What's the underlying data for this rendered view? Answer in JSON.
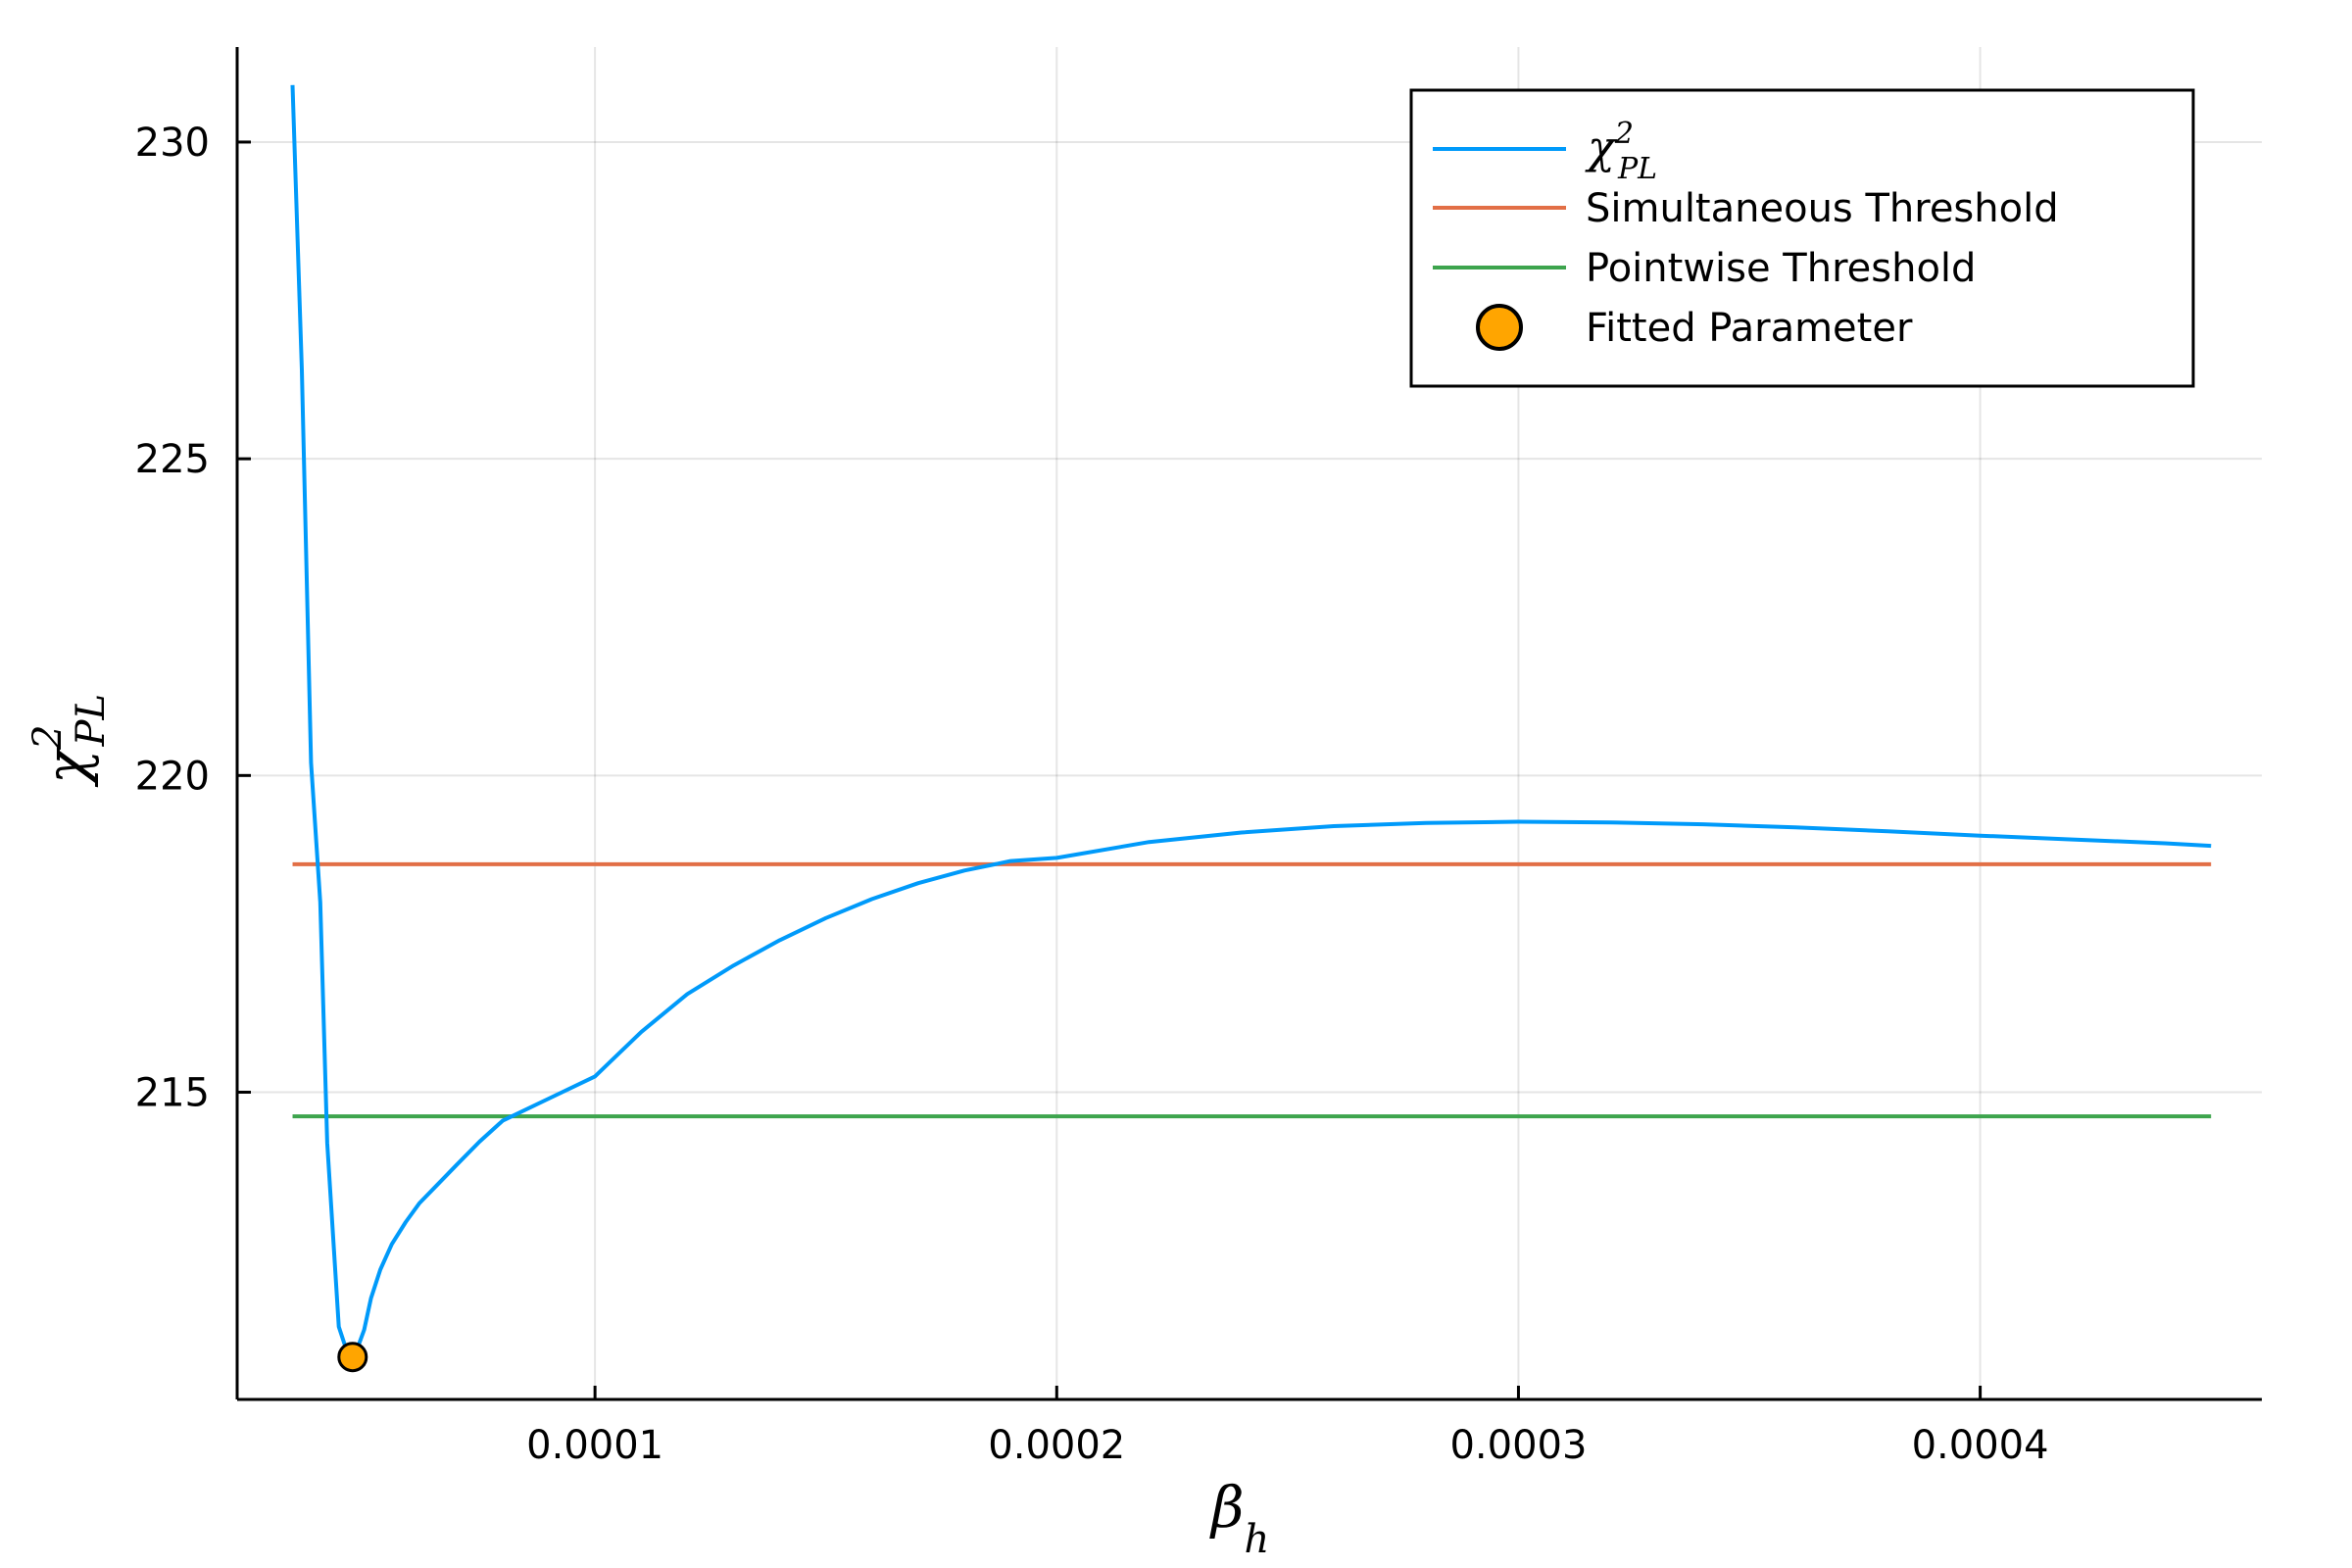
{
  "chart_data": {
    "type": "line",
    "xlabel": {
      "base": "β",
      "sub": "h"
    },
    "ylabel": {
      "base": "χ",
      "sup": "2",
      "sub": "PL"
    },
    "xlim": [
      2.25e-05,
      0.000461
    ],
    "ylim": [
      210.15,
      231.5
    ],
    "xticks": [
      {
        "value": 0.0001,
        "label": "0.0001"
      },
      {
        "value": 0.0002,
        "label": "0.0002"
      },
      {
        "value": 0.0003,
        "label": "0.0003"
      },
      {
        "value": 0.0004,
        "label": "0.0004"
      }
    ],
    "yticks": [
      {
        "value": 215,
        "label": "215"
      },
      {
        "value": 220,
        "label": "220"
      },
      {
        "value": 225,
        "label": "225"
      },
      {
        "value": 230,
        "label": "230"
      }
    ],
    "grid": true,
    "legend_position": "top-right",
    "series": [
      {
        "name": "χ²_PL",
        "legend": {
          "base": "χ",
          "sup": "2",
          "sub": "PL"
        },
        "kind": "line",
        "color": "#009AFA",
        "x": [
          3.45e-05,
          3.65e-05,
          3.85e-05,
          4.05e-05,
          4.2e-05,
          4.45e-05,
          4.7e-05,
          4.85e-05,
          5e-05,
          5.15e-05,
          5.35e-05,
          5.6e-05,
          5.9e-05,
          6.2e-05,
          6.6e-05,
          7e-05,
          7.5e-05,
          8e-05,
          9e-05,
          0.0001,
          0.00011,
          0.00012,
          0.00013,
          0.00014,
          0.00015,
          0.00016,
          0.00017,
          0.00018,
          0.00019,
          0.0002,
          0.00022,
          0.00024,
          0.00026,
          0.00028,
          0.0003,
          0.00032,
          0.00034,
          0.00036,
          0.00038,
          0.0004,
          0.00042,
          0.00044,
          0.00045
        ],
        "y": [
          230.9,
          226.4,
          220.2,
          218.0,
          214.2,
          211.3,
          210.75,
          210.95,
          211.25,
          211.75,
          212.2,
          212.6,
          212.95,
          213.25,
          213.55,
          213.85,
          214.22,
          214.55,
          214.9,
          215.25,
          215.95,
          216.55,
          217.0,
          217.4,
          217.75,
          218.05,
          218.3,
          218.5,
          218.65,
          218.7,
          218.95,
          219.1,
          219.2,
          219.25,
          219.27,
          219.26,
          219.23,
          219.18,
          219.12,
          219.05,
          218.99,
          218.93,
          218.89
        ]
      },
      {
        "name": "Simultaneous Threshold",
        "kind": "hline",
        "color": "#E26F46",
        "y": 218.6,
        "x": [
          3.45e-05,
          0.00045
        ]
      },
      {
        "name": "Pointwise Threshold",
        "kind": "hline",
        "color": "#3DA44D",
        "y": 214.62,
        "x": [
          3.45e-05,
          0.00045
        ]
      },
      {
        "name": "Fitted Parameter",
        "kind": "point",
        "color": "#FFA500",
        "x": [
          4.75e-05
        ],
        "y": [
          210.82
        ]
      }
    ]
  }
}
